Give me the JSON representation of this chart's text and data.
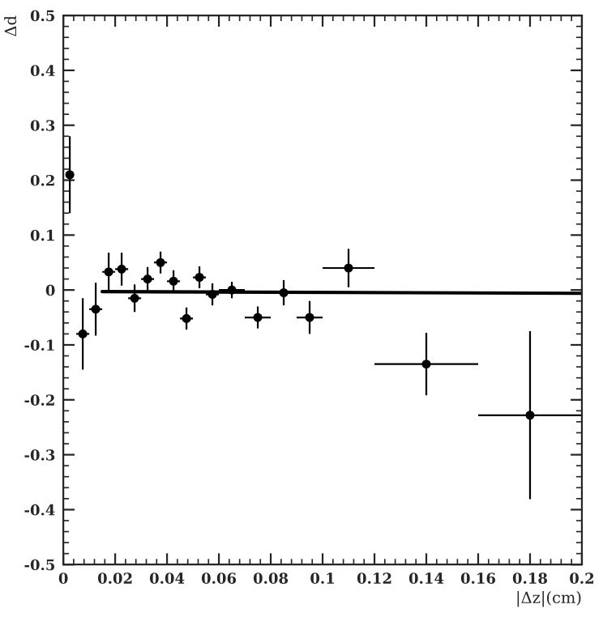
{
  "chart_data": {
    "type": "scatter",
    "xlabel": "|Δz|(cm)",
    "ylabel": "Δd",
    "xlim": [
      0,
      0.2
    ],
    "xticks": [
      0,
      0.02,
      0.04,
      0.06,
      0.08,
      0.1,
      0.12,
      0.14,
      0.16,
      0.18,
      0.2
    ],
    "ylim": [
      -0.5,
      0.5
    ],
    "yticks": [
      -0.5,
      -0.4,
      -0.3,
      -0.2,
      -0.1,
      0,
      0.1,
      0.2,
      0.3,
      0.4,
      0.5
    ],
    "grid": false,
    "series": [
      {
        "marker": "circle",
        "color": "#000000",
        "x": [
          0.0025,
          0.0075,
          0.0125,
          0.0175,
          0.0225,
          0.0275,
          0.0325,
          0.0375,
          0.0425,
          0.0475,
          0.0525,
          0.0575,
          0.065,
          0.075,
          0.085,
          0.095,
          0.11,
          0.14,
          0.18
        ],
        "values": [
          0.21,
          -0.08,
          -0.035,
          0.033,
          0.038,
          -0.015,
          0.02,
          0.05,
          0.016,
          -0.052,
          0.023,
          -0.008,
          0.0,
          -0.05,
          -0.005,
          -0.05,
          0.04,
          -0.135,
          -0.228
        ],
        "errors": [
          0.07,
          0.065,
          0.048,
          0.035,
          0.03,
          0.025,
          0.022,
          0.02,
          0.02,
          0.02,
          0.02,
          0.02,
          0.015,
          0.02,
          0.023,
          0.03,
          0.035,
          0.057,
          0.153
        ],
        "xerrors": [
          null,
          0.0025,
          0.0025,
          0.0025,
          0.0025,
          0.0025,
          0.0025,
          0.0025,
          0.0025,
          0.0025,
          0.0025,
          0.0025,
          0.005,
          0.005,
          0.005,
          0.005,
          0.01,
          0.02,
          0.02
        ]
      },
      {
        "type": "line",
        "color": "#000000",
        "x": [
          0.015,
          0.2
        ],
        "values": [
          -0.003,
          -0.006
        ],
        "line_style": "solid"
      }
    ]
  }
}
